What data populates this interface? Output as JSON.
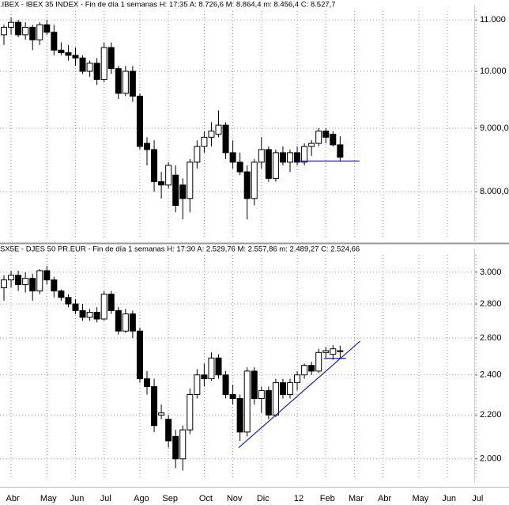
{
  "chart_data": [
    {
      "type": "candlestick",
      "title": ".IBEX - IBEX 35 INDEX - Fin de día 1 semanas  H: 17:35  A: 8.726,6  M: 8.864,4  m: 8.456,4  C: 8.527,7",
      "log_scale": true,
      "grid": true,
      "up_color": "#ffffff",
      "down_color": "#000000",
      "ylim": [
        7350,
        11180
      ],
      "yticks": [
        {
          "value": 11000,
          "label": "11.000"
        },
        {
          "value": 10000,
          "label": "10.000"
        },
        {
          "value": 9000,
          "label": "9.000,0"
        },
        {
          "value": 8000,
          "label": "8.000,0"
        }
      ],
      "open": [
        10700,
        10850,
        10950,
        10700,
        10850,
        10600,
        10900,
        10750,
        10400,
        10350,
        10300,
        10250,
        10000,
        10150,
        9850,
        10450,
        10050,
        9600,
        10000,
        9550,
        8750,
        8650,
        8150,
        8100,
        8250,
        8100,
        7900,
        8450,
        8700,
        8850,
        8900,
        9050,
        8600,
        8450,
        8300,
        7900,
        8450,
        8650,
        8200,
        8600,
        8450,
        8600,
        8450,
        8700,
        8750,
        8950,
        8900,
        8726.6
      ],
      "high": [
        10900,
        11050,
        11000,
        10950,
        10900,
        10950,
        11000,
        10900,
        10550,
        10500,
        10450,
        10300,
        10200,
        10250,
        10550,
        10550,
        10100,
        10100,
        10100,
        9600,
        8850,
        8800,
        8300,
        8450,
        8400,
        8200,
        8500,
        8800,
        8950,
        9100,
        9300,
        9100,
        8800,
        8600,
        8400,
        8500,
        8850,
        8700,
        8650,
        8700,
        8650,
        8700,
        8750,
        8800,
        9000,
        9000,
        8950,
        8864.4
      ],
      "low": [
        10500,
        10700,
        10650,
        10600,
        10400,
        10500,
        10700,
        10300,
        10300,
        10200,
        10100,
        9950,
        9900,
        9750,
        9800,
        9950,
        9500,
        9550,
        9450,
        8650,
        8400,
        8000,
        7900,
        8050,
        7700,
        7600,
        7700,
        8350,
        8600,
        8700,
        8850,
        8500,
        8350,
        8250,
        7600,
        7800,
        8350,
        8150,
        8150,
        8400,
        8300,
        8400,
        8400,
        8550,
        8700,
        8750,
        8700,
        8456.4
      ],
      "close": [
        10850,
        10950,
        10700,
        10850,
        10600,
        10900,
        10750,
        10400,
        10350,
        10300,
        10250,
        10000,
        10150,
        9850,
        10450,
        10050,
        9600,
        10000,
        9550,
        8700,
        8650,
        8150,
        8100,
        8400,
        7800,
        7900,
        8450,
        8700,
        8850,
        8950,
        9050,
        8600,
        8450,
        8300,
        7900,
        8450,
        8650,
        8200,
        8600,
        8450,
        8600,
        8450,
        8700,
        8750,
        8950,
        8850,
        8726.6,
        8527.7
      ],
      "trendlines": [
        {
          "x": [
            41.2,
            49.7
          ],
          "values": [
            8467,
            8467
          ],
          "color": "#1a1acc"
        }
      ]
    },
    {
      "type": "candlestick",
      "title": "SX5E - DJES 50 PR.EUR - Fin de día 1 semanas  H: 17:30  A: 2.529,76  M: 2.557,86  m: 2.489,27  C: 2.524,66",
      "log_scale": true,
      "grid": true,
      "up_color": "#ffffff",
      "down_color": "#000000",
      "ylim": [
        1915,
        3115
      ],
      "yticks": [
        {
          "value": 3000,
          "label": "3.000"
        },
        {
          "value": 2800,
          "label": "2.800"
        },
        {
          "value": 2600,
          "label": "2.600"
        },
        {
          "value": 2400,
          "label": "2.400"
        },
        {
          "value": 2200,
          "label": "2.200"
        },
        {
          "value": 2000,
          "label": "2.000"
        }
      ],
      "categories": [
        null,
        "Abr",
        null,
        null,
        null,
        null,
        "May",
        null,
        null,
        null,
        "Jun",
        null,
        null,
        null,
        "Jul",
        null,
        null,
        null,
        null,
        "Ago",
        null,
        null,
        null,
        "Sep",
        null,
        null,
        null,
        null,
        "Oct",
        null,
        null,
        null,
        "Nov",
        null,
        null,
        null,
        "Dic",
        null,
        null,
        null,
        null,
        "12",
        null,
        null,
        null,
        "Feb",
        null,
        null,
        null,
        "Mar",
        null,
        null,
        null,
        "Abr",
        null,
        null,
        null,
        null,
        "May",
        null,
        null,
        null,
        "Jun",
        null,
        null,
        null,
        "Jul"
      ],
      "open": [
        2900,
        2950,
        2980,
        2920,
        2960,
        2880,
        3010,
        2950,
        2880,
        2840,
        2800,
        2760,
        2720,
        2750,
        2710,
        2860,
        2760,
        2640,
        2740,
        2640,
        2380,
        2340,
        2200,
        2180,
        2100,
        2000,
        2130,
        2300,
        2400,
        2380,
        2490,
        2400,
        2300,
        2280,
        2120,
        2420,
        2280,
        2320,
        2200,
        2360,
        2300,
        2360,
        2400,
        2450,
        2420,
        2520,
        2510,
        2529.76,
        null,
        null,
        null,
        null,
        null,
        null,
        null,
        null,
        null,
        null,
        null,
        null,
        null,
        null,
        null,
        null,
        null,
        null,
        null
      ],
      "high": [
        2980,
        3010,
        3010,
        3000,
        2990,
        3020,
        3040,
        2970,
        2890,
        2860,
        2830,
        2800,
        2770,
        2780,
        2880,
        2880,
        2780,
        2770,
        2760,
        2660,
        2420,
        2380,
        2250,
        2200,
        2130,
        2150,
        2330,
        2430,
        2460,
        2520,
        2510,
        2420,
        2350,
        2300,
        2440,
        2440,
        2340,
        2340,
        2380,
        2380,
        2380,
        2420,
        2460,
        2470,
        2540,
        2550,
        2560,
        2557.86,
        null,
        null,
        null,
        null,
        null,
        null,
        null,
        null,
        null,
        null,
        null,
        null,
        null,
        null,
        null,
        null,
        null,
        null,
        null
      ],
      "low": [
        2820,
        2900,
        2880,
        2870,
        2820,
        2860,
        2920,
        2840,
        2820,
        2780,
        2740,
        2700,
        2700,
        2690,
        2700,
        2740,
        2620,
        2630,
        2600,
        2360,
        2300,
        2120,
        2180,
        2050,
        1960,
        1950,
        2110,
        2280,
        2340,
        2370,
        2380,
        2280,
        2250,
        2080,
        2100,
        2250,
        2210,
        2180,
        2190,
        2280,
        2280,
        2320,
        2380,
        2400,
        2410,
        2490,
        2480,
        2489.27,
        null,
        null,
        null,
        null,
        null,
        null,
        null,
        null,
        null,
        null,
        null,
        null,
        null,
        null,
        null,
        null,
        null,
        null,
        null
      ],
      "close": [
        2950,
        2980,
        2920,
        2960,
        2880,
        3010,
        2950,
        2880,
        2840,
        2800,
        2760,
        2720,
        2750,
        2710,
        2860,
        2760,
        2640,
        2740,
        2640,
        2380,
        2340,
        2150,
        2210,
        2080,
        2000,
        2130,
        2300,
        2400,
        2380,
        2490,
        2400,
        2300,
        2280,
        2120,
        2420,
        2280,
        2320,
        2200,
        2360,
        2300,
        2360,
        2400,
        2450,
        2420,
        2520,
        2530,
        2540,
        2524.66,
        null,
        null,
        null,
        null,
        null,
        null,
        null,
        null,
        null,
        null,
        null,
        null,
        null,
        null,
        null,
        null,
        null,
        null,
        null
      ],
      "trendlines": [
        {
          "x": [
            32.8,
            49.8
          ],
          "values": [
            2049,
            2583
          ],
          "color": "#1a1acc"
        },
        {
          "x": [
            44.75,
            47.8
          ],
          "values": [
            2488,
            2488
          ],
          "color": "#1a1acc"
        }
      ]
    }
  ]
}
